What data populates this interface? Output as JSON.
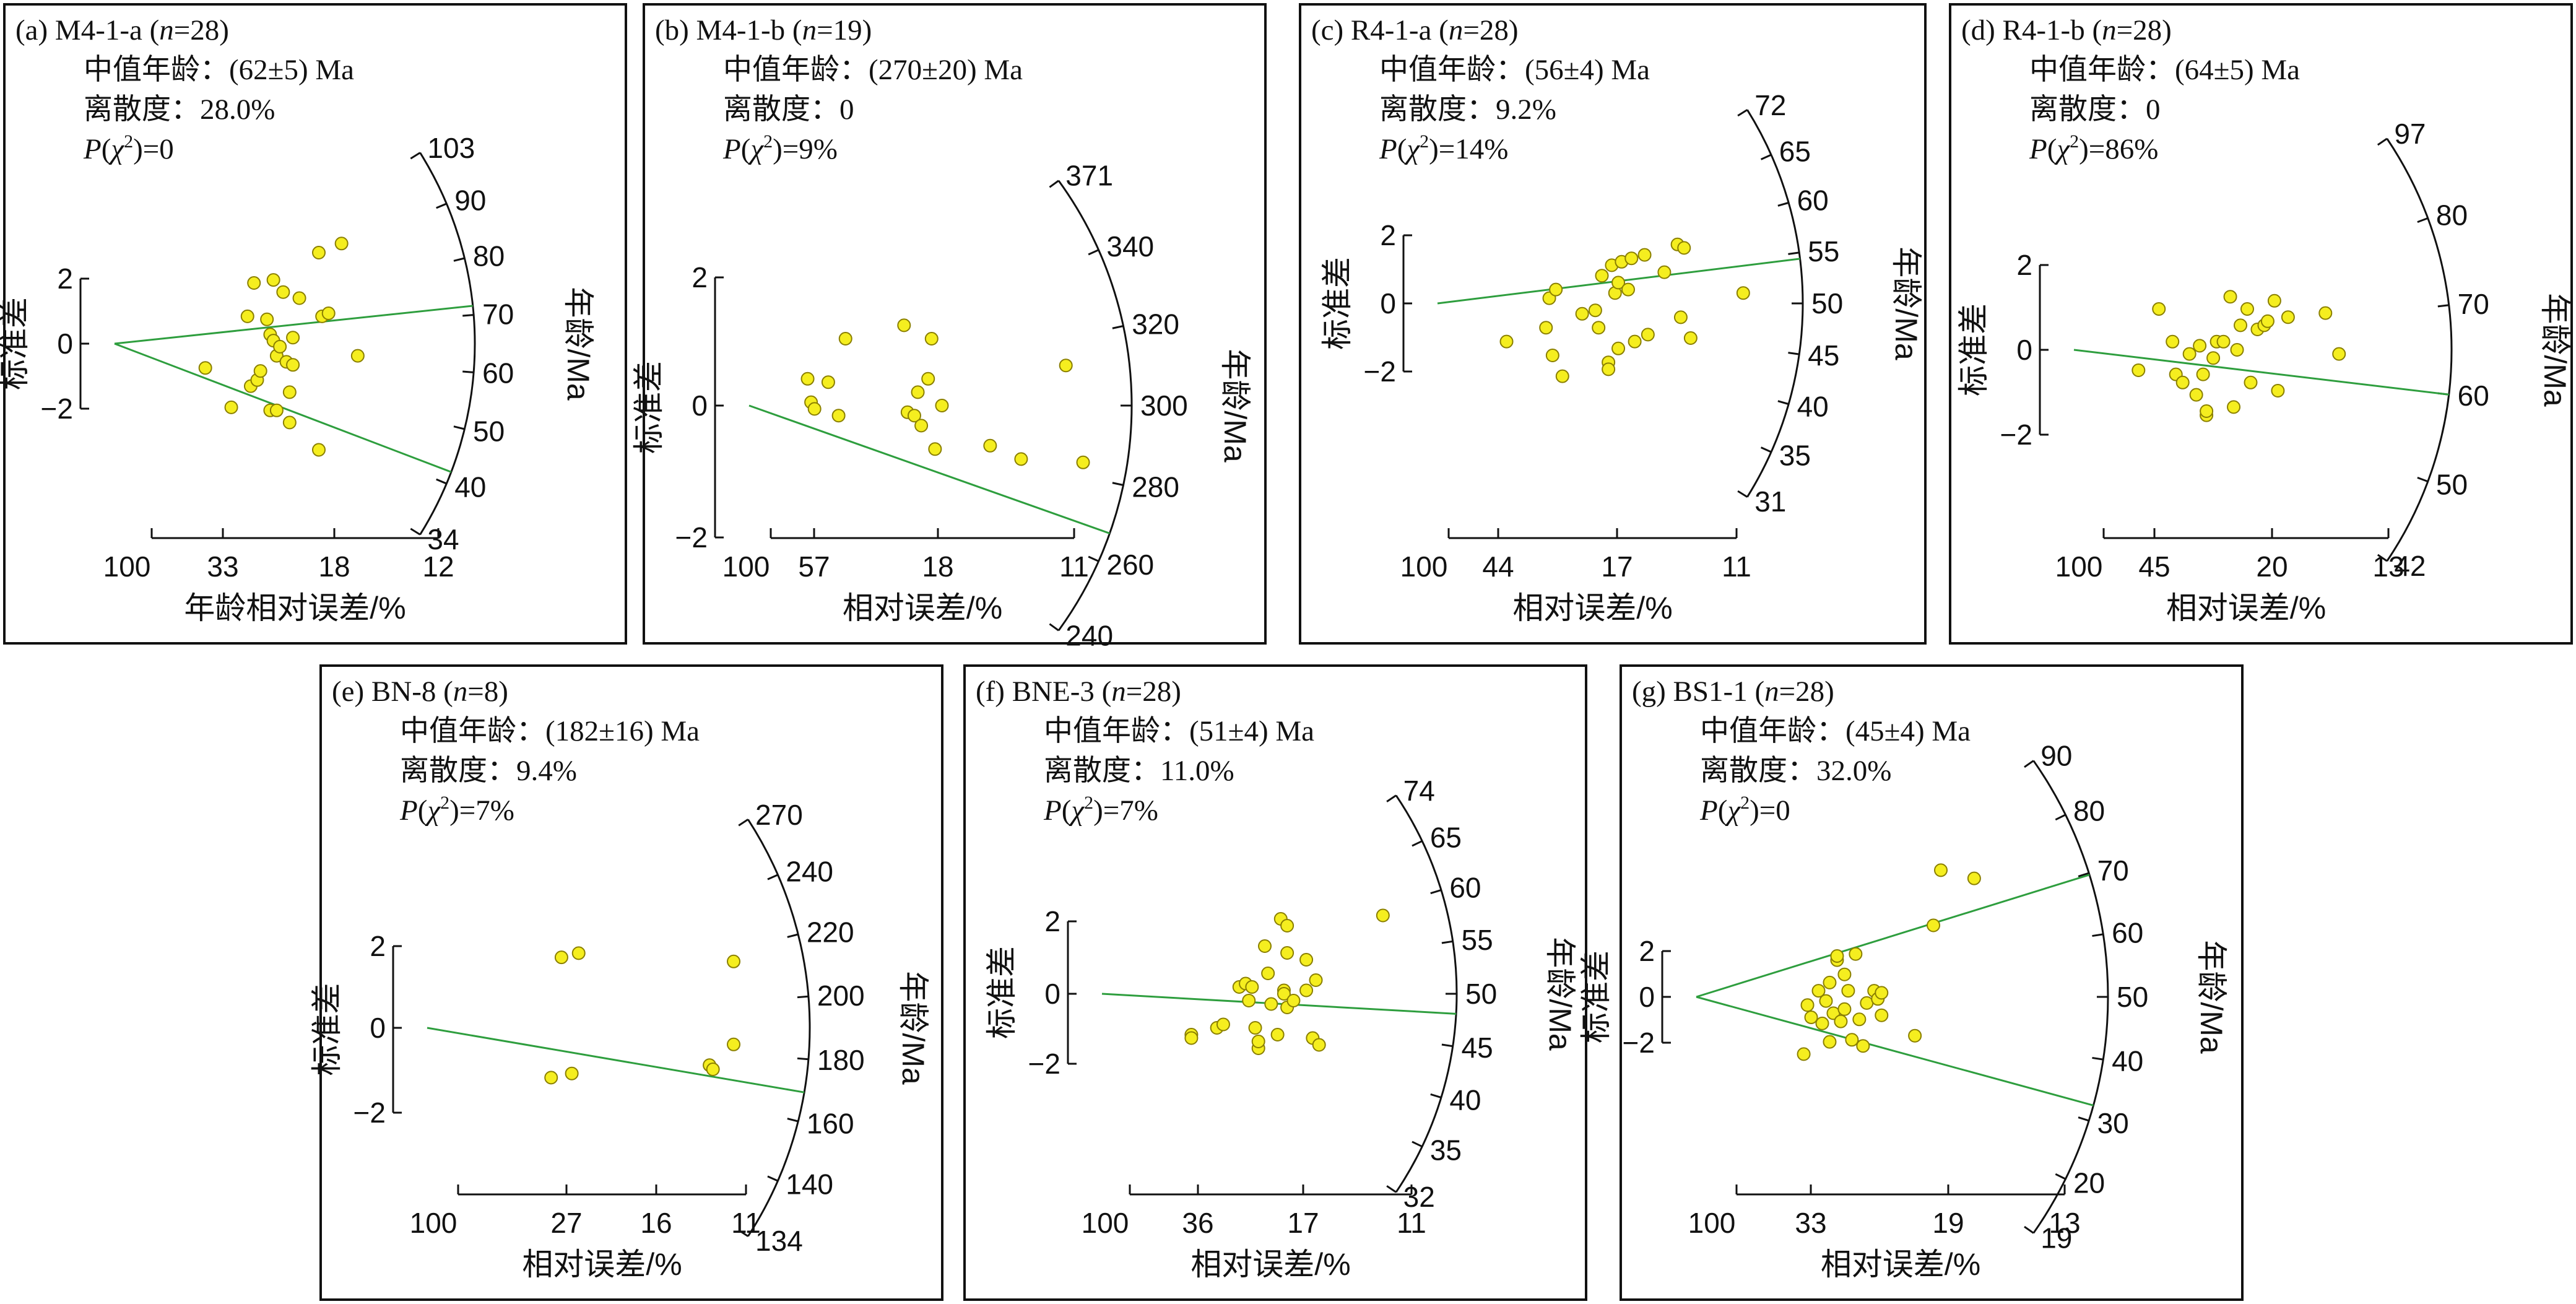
{
  "labels": {
    "median": "中值年龄：",
    "dispersion": "离散度：",
    "p_value_prefix": "P",
    "chi": "χ",
    "chi_exp": "2"
  },
  "chart_data": [
    {
      "type": "scatter",
      "subtype": "radial-plot",
      "letter": "(a)",
      "sample": "M4-1-a",
      "n": "28",
      "median_age": "(62±5) Ma",
      "dispersion": "28.0%",
      "p_chi2": "0",
      "ylabel": "标准差",
      "xlabel": "年龄相对误差/%",
      "arc_label": "年龄/Ma",
      "y_ticks": [
        "2",
        "0",
        "−2"
      ],
      "x_ticks": [
        "100",
        "33",
        "18",
        "12"
      ],
      "arc_ticks": [
        "103",
        "90",
        "80",
        "70",
        "60",
        "50",
        "40",
        "34"
      ],
      "lines_age_ma": [
        75,
        46
      ],
      "points": [
        {
          "x": 2.8,
          "y": -0.8
        },
        {
          "x": 3.6,
          "y": -2.1
        },
        {
          "x": 4.1,
          "y": 0.9
        },
        {
          "x": 4.2,
          "y": -1.4
        },
        {
          "x": 4.3,
          "y": 2.0
        },
        {
          "x": 4.4,
          "y": -1.2
        },
        {
          "x": 4.5,
          "y": -0.9
        },
        {
          "x": 4.7,
          "y": 0.8
        },
        {
          "x": 4.8,
          "y": -2.2
        },
        {
          "x": 4.8,
          "y": 0.3
        },
        {
          "x": 4.9,
          "y": 0.1
        },
        {
          "x": 4.9,
          "y": 2.1
        },
        {
          "x": 5.0,
          "y": -0.4
        },
        {
          "x": 5.0,
          "y": -2.2
        },
        {
          "x": 5.1,
          "y": -0.1
        },
        {
          "x": 5.2,
          "y": 1.7
        },
        {
          "x": 5.3,
          "y": -0.6
        },
        {
          "x": 5.4,
          "y": -1.6
        },
        {
          "x": 5.4,
          "y": -2.6
        },
        {
          "x": 5.5,
          "y": 0.2
        },
        {
          "x": 5.5,
          "y": -0.7
        },
        {
          "x": 5.7,
          "y": 1.5
        },
        {
          "x": 6.3,
          "y": 3.0
        },
        {
          "x": 6.3,
          "y": -3.5
        },
        {
          "x": 6.4,
          "y": 0.9
        },
        {
          "x": 6.6,
          "y": 1.0
        },
        {
          "x": 7.0,
          "y": 3.3
        },
        {
          "x": 7.5,
          "y": -0.4
        }
      ]
    },
    {
      "type": "scatter",
      "subtype": "radial-plot",
      "letter": "(b)",
      "sample": "M4-1-b",
      "n": "19",
      "median_age": "(270±20) Ma",
      "dispersion": "0",
      "p_chi2": "9%",
      "ylabel": "标准差",
      "xlabel": "相对误差/%",
      "arc_label": "年龄/Ma",
      "y_ticks": [
        "2",
        "0",
        "−2"
      ],
      "x_ticks": [
        "100",
        "57",
        "18",
        "11"
      ],
      "arc_ticks": [
        "371",
        "340",
        "320",
        "300",
        "280",
        "260",
        "240"
      ],
      "lines_age_ma": [
        270
      ],
      "points": [
        {
          "x": 1.7,
          "y": 0.4
        },
        {
          "x": 1.8,
          "y": 0.05
        },
        {
          "x": 1.9,
          "y": -0.05
        },
        {
          "x": 2.3,
          "y": 0.35
        },
        {
          "x": 2.6,
          "y": -0.15
        },
        {
          "x": 2.8,
          "y": 1.0
        },
        {
          "x": 4.5,
          "y": 1.2
        },
        {
          "x": 4.6,
          "y": -0.1
        },
        {
          "x": 4.8,
          "y": -0.15
        },
        {
          "x": 4.9,
          "y": 0.2
        },
        {
          "x": 5.0,
          "y": -0.3
        },
        {
          "x": 5.2,
          "y": 0.4
        },
        {
          "x": 5.3,
          "y": 1.0
        },
        {
          "x": 5.4,
          "y": -0.65
        },
        {
          "x": 5.6,
          "y": 0.0
        },
        {
          "x": 7.0,
          "y": -0.6
        },
        {
          "x": 7.9,
          "y": -0.8
        },
        {
          "x": 9.2,
          "y": 0.6
        },
        {
          "x": 9.7,
          "y": -0.85
        }
      ]
    },
    {
      "type": "scatter",
      "subtype": "radial-plot",
      "letter": "(c)",
      "sample": "R4-1-a",
      "n": "28",
      "median_age": "(56±4) Ma",
      "dispersion": "9.2%",
      "p_chi2": "14%",
      "ylabel": "标准差",
      "xlabel": "相对误差/%",
      "arc_label": "年龄/Ma",
      "y_ticks": [
        "2",
        "0",
        "−2"
      ],
      "x_ticks": [
        "100",
        "44",
        "17",
        "11"
      ],
      "arc_ticks": [
        "72",
        "65",
        "60",
        "55",
        "50",
        "45",
        "40",
        "35",
        "31"
      ],
      "lines_age_ma": [
        56
      ],
      "points": [
        {
          "x": 2.1,
          "y": -1.1
        },
        {
          "x": 3.3,
          "y": -0.7
        },
        {
          "x": 3.4,
          "y": 0.15
        },
        {
          "x": 3.5,
          "y": -1.5
        },
        {
          "x": 3.6,
          "y": 0.4
        },
        {
          "x": 3.8,
          "y": -2.1
        },
        {
          "x": 4.4,
          "y": -0.3
        },
        {
          "x": 4.8,
          "y": -0.2
        },
        {
          "x": 4.9,
          "y": -0.7
        },
        {
          "x": 5.0,
          "y": 0.8
        },
        {
          "x": 5.2,
          "y": -1.7
        },
        {
          "x": 5.2,
          "y": -1.9
        },
        {
          "x": 5.3,
          "y": 1.1
        },
        {
          "x": 5.4,
          "y": 0.3
        },
        {
          "x": 5.5,
          "y": 0.6
        },
        {
          "x": 5.5,
          "y": -1.3
        },
        {
          "x": 5.6,
          "y": 1.2
        },
        {
          "x": 5.8,
          "y": 0.4
        },
        {
          "x": 5.9,
          "y": 1.3
        },
        {
          "x": 6.0,
          "y": -1.1
        },
        {
          "x": 6.3,
          "y": 1.4
        },
        {
          "x": 6.4,
          "y": -0.9
        },
        {
          "x": 6.9,
          "y": 0.9
        },
        {
          "x": 7.3,
          "y": 1.7
        },
        {
          "x": 7.4,
          "y": -0.4
        },
        {
          "x": 7.5,
          "y": 1.6
        },
        {
          "x": 7.7,
          "y": -1.0
        },
        {
          "x": 9.3,
          "y": 0.3
        }
      ]
    },
    {
      "type": "scatter",
      "subtype": "radial-plot",
      "letter": "(d)",
      "sample": "R4-1-b",
      "n": "28",
      "median_age": "(64±5) Ma",
      "dispersion": "0",
      "p_chi2": "86%",
      "ylabel": "标准差",
      "xlabel": "相对误差/%",
      "arc_label": "年龄/Ma",
      "y_ticks": [
        "2",
        "0",
        "−2"
      ],
      "x_ticks": [
        "100",
        "45",
        "20",
        "13"
      ],
      "arc_ticks": [
        "97",
        "80",
        "70",
        "60",
        "50",
        "42"
      ],
      "lines_age_ma": [
        64
      ],
      "points": [
        {
          "x": 1.9,
          "y": -0.5
        },
        {
          "x": 2.5,
          "y": 1.0
        },
        {
          "x": 2.9,
          "y": 0.2
        },
        {
          "x": 3.0,
          "y": -0.6
        },
        {
          "x": 3.2,
          "y": -0.8
        },
        {
          "x": 3.4,
          "y": -0.1
        },
        {
          "x": 3.6,
          "y": -1.1
        },
        {
          "x": 3.7,
          "y": 0.1
        },
        {
          "x": 3.8,
          "y": -0.6
        },
        {
          "x": 3.9,
          "y": -1.6
        },
        {
          "x": 3.9,
          "y": -1.5
        },
        {
          "x": 4.1,
          "y": -0.2
        },
        {
          "x": 4.2,
          "y": 0.2
        },
        {
          "x": 4.4,
          "y": 0.2
        },
        {
          "x": 4.6,
          "y": 1.3
        },
        {
          "x": 4.7,
          "y": -1.4
        },
        {
          "x": 4.8,
          "y": 0.0
        },
        {
          "x": 4.9,
          "y": 0.6
        },
        {
          "x": 5.1,
          "y": 1.0
        },
        {
          "x": 5.2,
          "y": -0.8
        },
        {
          "x": 5.4,
          "y": 0.5
        },
        {
          "x": 5.6,
          "y": 0.6
        },
        {
          "x": 5.7,
          "y": 0.7
        },
        {
          "x": 5.9,
          "y": 1.2
        },
        {
          "x": 6.0,
          "y": -1.0
        },
        {
          "x": 6.3,
          "y": 0.8
        },
        {
          "x": 7.4,
          "y": 0.9
        },
        {
          "x": 7.8,
          "y": -0.1
        }
      ]
    },
    {
      "type": "scatter",
      "subtype": "radial-plot",
      "letter": "(e)",
      "sample": "BN-8",
      "n": "8",
      "median_age": "(182±16) Ma",
      "dispersion": "9.4%",
      "p_chi2": "7%",
      "ylabel": "标准差",
      "xlabel": "相对误差/%",
      "arc_label": "年龄/Ma",
      "y_ticks": [
        "2",
        "0",
        "−2"
      ],
      "x_ticks": [
        "100",
        "27",
        "16",
        "11"
      ],
      "arc_ticks": [
        "270",
        "240",
        "220",
        "200",
        "180",
        "160",
        "140",
        "134"
      ],
      "lines_age_ma": [
        182
      ],
      "points": [
        {
          "x": 3.6,
          "y": -1.2
        },
        {
          "x": 3.9,
          "y": 1.7
        },
        {
          "x": 4.2,
          "y": -1.1
        },
        {
          "x": 4.4,
          "y": 1.8
        },
        {
          "x": 8.2,
          "y": -0.9
        },
        {
          "x": 8.3,
          "y": -1.0
        },
        {
          "x": 8.9,
          "y": -0.4
        },
        {
          "x": 8.9,
          "y": 1.6
        }
      ]
    },
    {
      "type": "scatter",
      "subtype": "radial-plot",
      "letter": "(f)",
      "sample": "BNE-3",
      "n": "28",
      "median_age": "(51±4) Ma",
      "dispersion": "11.0%",
      "p_chi2": "7%",
      "ylabel": "标准差",
      "xlabel": "相对误差/%",
      "arc_label": "年龄/Ma",
      "y_ticks": [
        "2",
        "0",
        "−2"
      ],
      "x_ticks": [
        "100",
        "36",
        "17",
        "11"
      ],
      "arc_ticks": [
        "74",
        "65",
        "60",
        "55",
        "50",
        "45",
        "40",
        "35",
        "32"
      ],
      "lines_age_ma": [
        51
      ],
      "points": [
        {
          "x": 2.8,
          "y": -1.2
        },
        {
          "x": 2.8,
          "y": -1.3
        },
        {
          "x": 3.6,
          "y": -1.0
        },
        {
          "x": 3.8,
          "y": -0.9
        },
        {
          "x": 4.3,
          "y": 0.2
        },
        {
          "x": 4.5,
          "y": 0.3
        },
        {
          "x": 4.6,
          "y": -0.2
        },
        {
          "x": 4.7,
          "y": 0.2
        },
        {
          "x": 4.8,
          "y": -1.0
        },
        {
          "x": 4.9,
          "y": -1.6
        },
        {
          "x": 4.9,
          "y": -1.4
        },
        {
          "x": 5.1,
          "y": 1.4
        },
        {
          "x": 5.2,
          "y": 0.6
        },
        {
          "x": 5.3,
          "y": -0.3
        },
        {
          "x": 5.5,
          "y": -1.2
        },
        {
          "x": 5.6,
          "y": 2.2
        },
        {
          "x": 5.7,
          "y": 0.1
        },
        {
          "x": 5.7,
          "y": 0.0
        },
        {
          "x": 5.8,
          "y": 1.2
        },
        {
          "x": 5.8,
          "y": 2.0
        },
        {
          "x": 5.8,
          "y": -0.4
        },
        {
          "x": 6.0,
          "y": -0.2
        },
        {
          "x": 6.4,
          "y": 0.1
        },
        {
          "x": 6.4,
          "y": 1.0
        },
        {
          "x": 6.6,
          "y": -1.3
        },
        {
          "x": 6.7,
          "y": 0.4
        },
        {
          "x": 6.8,
          "y": -1.5
        },
        {
          "x": 8.8,
          "y": 2.3
        }
      ]
    },
    {
      "type": "scatter",
      "subtype": "radial-plot",
      "letter": "(g)",
      "sample": "BS1-1",
      "n": "28",
      "median_age": "(45±4) Ma",
      "dispersion": "32.0%",
      "p_chi2": "0",
      "ylabel": "标准差",
      "xlabel": "年龄/Ma",
      "arc_label": "年龄/Ma",
      "xlabel_bottom": "相对误差/%",
      "y_ticks": [
        "2",
        "0",
        "−2"
      ],
      "x_ticks": [
        "100",
        "33",
        "19",
        "13"
      ],
      "arc_ticks": [
        "90",
        "80",
        "70",
        "60",
        "50",
        "40",
        "30",
        "20",
        "19"
      ],
      "lines_age_ma": [
        72,
        39
      ],
      "points": [
        {
          "x": 2.9,
          "y": -2.8
        },
        {
          "x": 3.0,
          "y": -0.4
        },
        {
          "x": 3.1,
          "y": -1.0
        },
        {
          "x": 3.3,
          "y": 0.3
        },
        {
          "x": 3.4,
          "y": -1.3
        },
        {
          "x": 3.5,
          "y": -0.2
        },
        {
          "x": 3.6,
          "y": 0.7
        },
        {
          "x": 3.6,
          "y": -2.2
        },
        {
          "x": 3.7,
          "y": -0.8
        },
        {
          "x": 3.8,
          "y": 1.8
        },
        {
          "x": 3.8,
          "y": 2.0
        },
        {
          "x": 3.9,
          "y": -1.2
        },
        {
          "x": 4.0,
          "y": -0.6
        },
        {
          "x": 4.0,
          "y": 1.1
        },
        {
          "x": 4.1,
          "y": 0.3
        },
        {
          "x": 4.2,
          "y": -2.1
        },
        {
          "x": 4.3,
          "y": 2.1
        },
        {
          "x": 4.4,
          "y": -1.1
        },
        {
          "x": 4.5,
          "y": -2.4
        },
        {
          "x": 4.6,
          "y": -0.3
        },
        {
          "x": 4.8,
          "y": 0.3
        },
        {
          "x": 4.9,
          "y": -0.1
        },
        {
          "x": 5.0,
          "y": -0.9
        },
        {
          "x": 5.0,
          "y": 0.2
        },
        {
          "x": 5.9,
          "y": -1.9
        },
        {
          "x": 6.4,
          "y": 3.5
        },
        {
          "x": 6.6,
          "y": 6.2
        },
        {
          "x": 7.5,
          "y": 5.8
        }
      ]
    }
  ]
}
